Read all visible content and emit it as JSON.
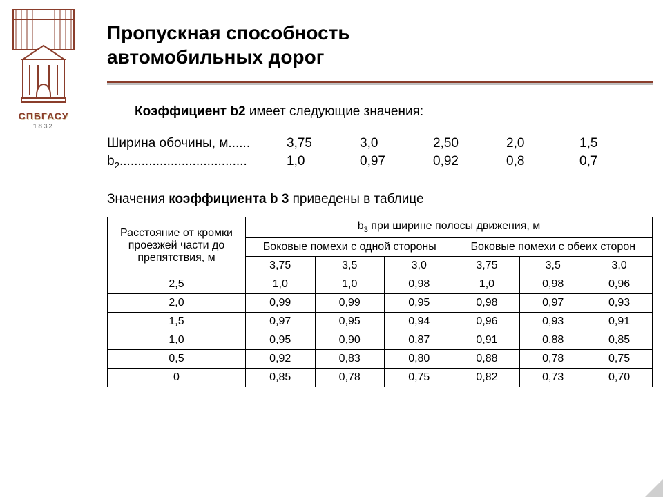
{
  "colors": {
    "accent": "#8a3d2b",
    "rule_grey": "#c0c0c0",
    "divider": "#cfcfcf",
    "text": "#000000",
    "bg": "#ffffff"
  },
  "logo": {
    "name": "СПБГАСУ",
    "year": "1832"
  },
  "title_line1": "Пропускная способность",
  "title_line2": "автомобильных дорог",
  "subtitle_prefix": "Коэффициент b2",
  "subtitle_rest": " имеет следующие значения:",
  "b2": {
    "row1_label": "Ширина обочины, м......",
    "row1_values": [
      "3,75",
      "3,0",
      "2,50",
      "2,0",
      "1,5"
    ],
    "row2_label_pref": "b",
    "row2_label_sub": "2",
    "row2_label_dots": "...................................",
    "row2_values": [
      "1,0",
      "0,97",
      "0,92",
      "0,8",
      "0,7"
    ]
  },
  "b3_intro_prefix": "Значения ",
  "b3_intro_bold": "коэффициента b 3",
  "b3_intro_suffix": " приведены в таблице",
  "table": {
    "head_col1": "Расстояние от кромки проезжей части до препятствия, м",
    "head_top_pref": "b",
    "head_top_sub": "3",
    "head_top_rest": " при ширине полосы движения, м",
    "head_left": "Боковые помехи с одной стороны",
    "head_right": "Боковые помехи с обеих сторон",
    "subcols": [
      "3,75",
      "3,5",
      "3,0",
      "3,75",
      "3,5",
      "3,0"
    ],
    "rows": [
      {
        "k": "2,5",
        "v": [
          "1,0",
          "1,0",
          "0,98",
          "1,0",
          "0,98",
          "0,96"
        ]
      },
      {
        "k": "2,0",
        "v": [
          "0,99",
          "0,99",
          "0,95",
          "0,98",
          "0,97",
          "0,93"
        ]
      },
      {
        "k": "1,5",
        "v": [
          "0,97",
          "0,95",
          "0,94",
          "0,96",
          "0,93",
          "0,91"
        ]
      },
      {
        "k": "1,0",
        "v": [
          "0,95",
          "0,90",
          "0,87",
          "0,91",
          "0,88",
          "0,85"
        ]
      },
      {
        "k": "0,5",
        "v": [
          "0,92",
          "0,83",
          "0,80",
          "0,88",
          "0,78",
          "0,75"
        ]
      },
      {
        "k": "0",
        "v": [
          "0,85",
          "0,78",
          "0,75",
          "0,82",
          "0,73",
          "0,70"
        ]
      }
    ],
    "border_color": "#000000",
    "font_size": 16
  }
}
